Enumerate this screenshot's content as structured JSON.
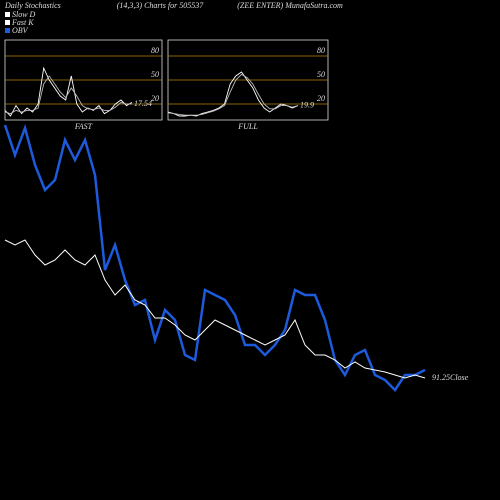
{
  "header": {
    "left": "Daily Stochastics",
    "center": "(14,3,3) Charts for 505537",
    "right": "(ZEE ENTER) MunafaSutra.com"
  },
  "legend": [
    {
      "name": "Slow D",
      "color": "#ffffff"
    },
    {
      "name": "Fast K",
      "color": "#ffffff"
    },
    {
      "name": "OBV",
      "color": "#1e5adc"
    }
  ],
  "chart_data": [
    {
      "type": "line",
      "title": "FAST",
      "value_label": "17.54",
      "ylim": [
        0,
        100
      ],
      "yticks": [
        20,
        50,
        80
      ],
      "grid": true,
      "grid_color": "#b8860b",
      "series": [
        {
          "color": "#ffffff",
          "values": [
            12,
            5,
            18,
            8,
            15,
            10,
            20,
            65,
            50,
            40,
            30,
            25,
            55,
            20,
            10,
            15,
            12,
            18,
            8,
            12,
            20,
            25,
            18,
            22
          ]
        },
        {
          "color": "#bbbbbb",
          "values": [
            10,
            8,
            12,
            10,
            12,
            12,
            15,
            45,
            55,
            45,
            35,
            28,
            40,
            30,
            18,
            14,
            13,
            15,
            12,
            12,
            16,
            22,
            20,
            20
          ]
        }
      ]
    },
    {
      "type": "line",
      "title": "FULL",
      "value_label": "19.9",
      "ylim": [
        0,
        100
      ],
      "yticks": [
        20,
        50,
        80
      ],
      "grid": true,
      "grid_color": "#b8860b",
      "series": [
        {
          "color": "#ffffff",
          "values": [
            10,
            8,
            5,
            5,
            6,
            5,
            8,
            10,
            12,
            15,
            20,
            45,
            55,
            60,
            50,
            40,
            25,
            15,
            10,
            15,
            20,
            18,
            15,
            18
          ]
        },
        {
          "color": "#bbbbbb",
          "values": [
            9,
            8,
            7,
            6,
            6,
            6,
            7,
            9,
            11,
            14,
            18,
            35,
            50,
            57,
            53,
            45,
            32,
            20,
            14,
            14,
            18,
            18,
            16,
            18
          ]
        }
      ]
    },
    {
      "type": "line",
      "annotation": "91.25Close",
      "ylim": [
        0,
        280
      ],
      "series": [
        {
          "color": "#1e5adc",
          "values": [
            275,
            245,
            272,
            235,
            210,
            220,
            260,
            240,
            260,
            225,
            130,
            155,
            120,
            95,
            100,
            60,
            90,
            80,
            45,
            40,
            110,
            105,
            100,
            85,
            55,
            55,
            45,
            55,
            70,
            110,
            105,
            105,
            80,
            40,
            25,
            45,
            50,
            25,
            20,
            10,
            25,
            25,
            30
          ]
        },
        {
          "color": "#ffffff",
          "values": [
            160,
            155,
            160,
            145,
            135,
            140,
            150,
            140,
            135,
            145,
            120,
            105,
            115,
            100,
            95,
            82,
            82,
            75,
            65,
            60,
            70,
            80,
            75,
            70,
            65,
            60,
            55,
            60,
            65,
            80,
            55,
            45,
            45,
            40,
            32,
            38,
            32,
            30,
            28,
            25,
            22,
            25,
            22
          ]
        }
      ]
    }
  ]
}
